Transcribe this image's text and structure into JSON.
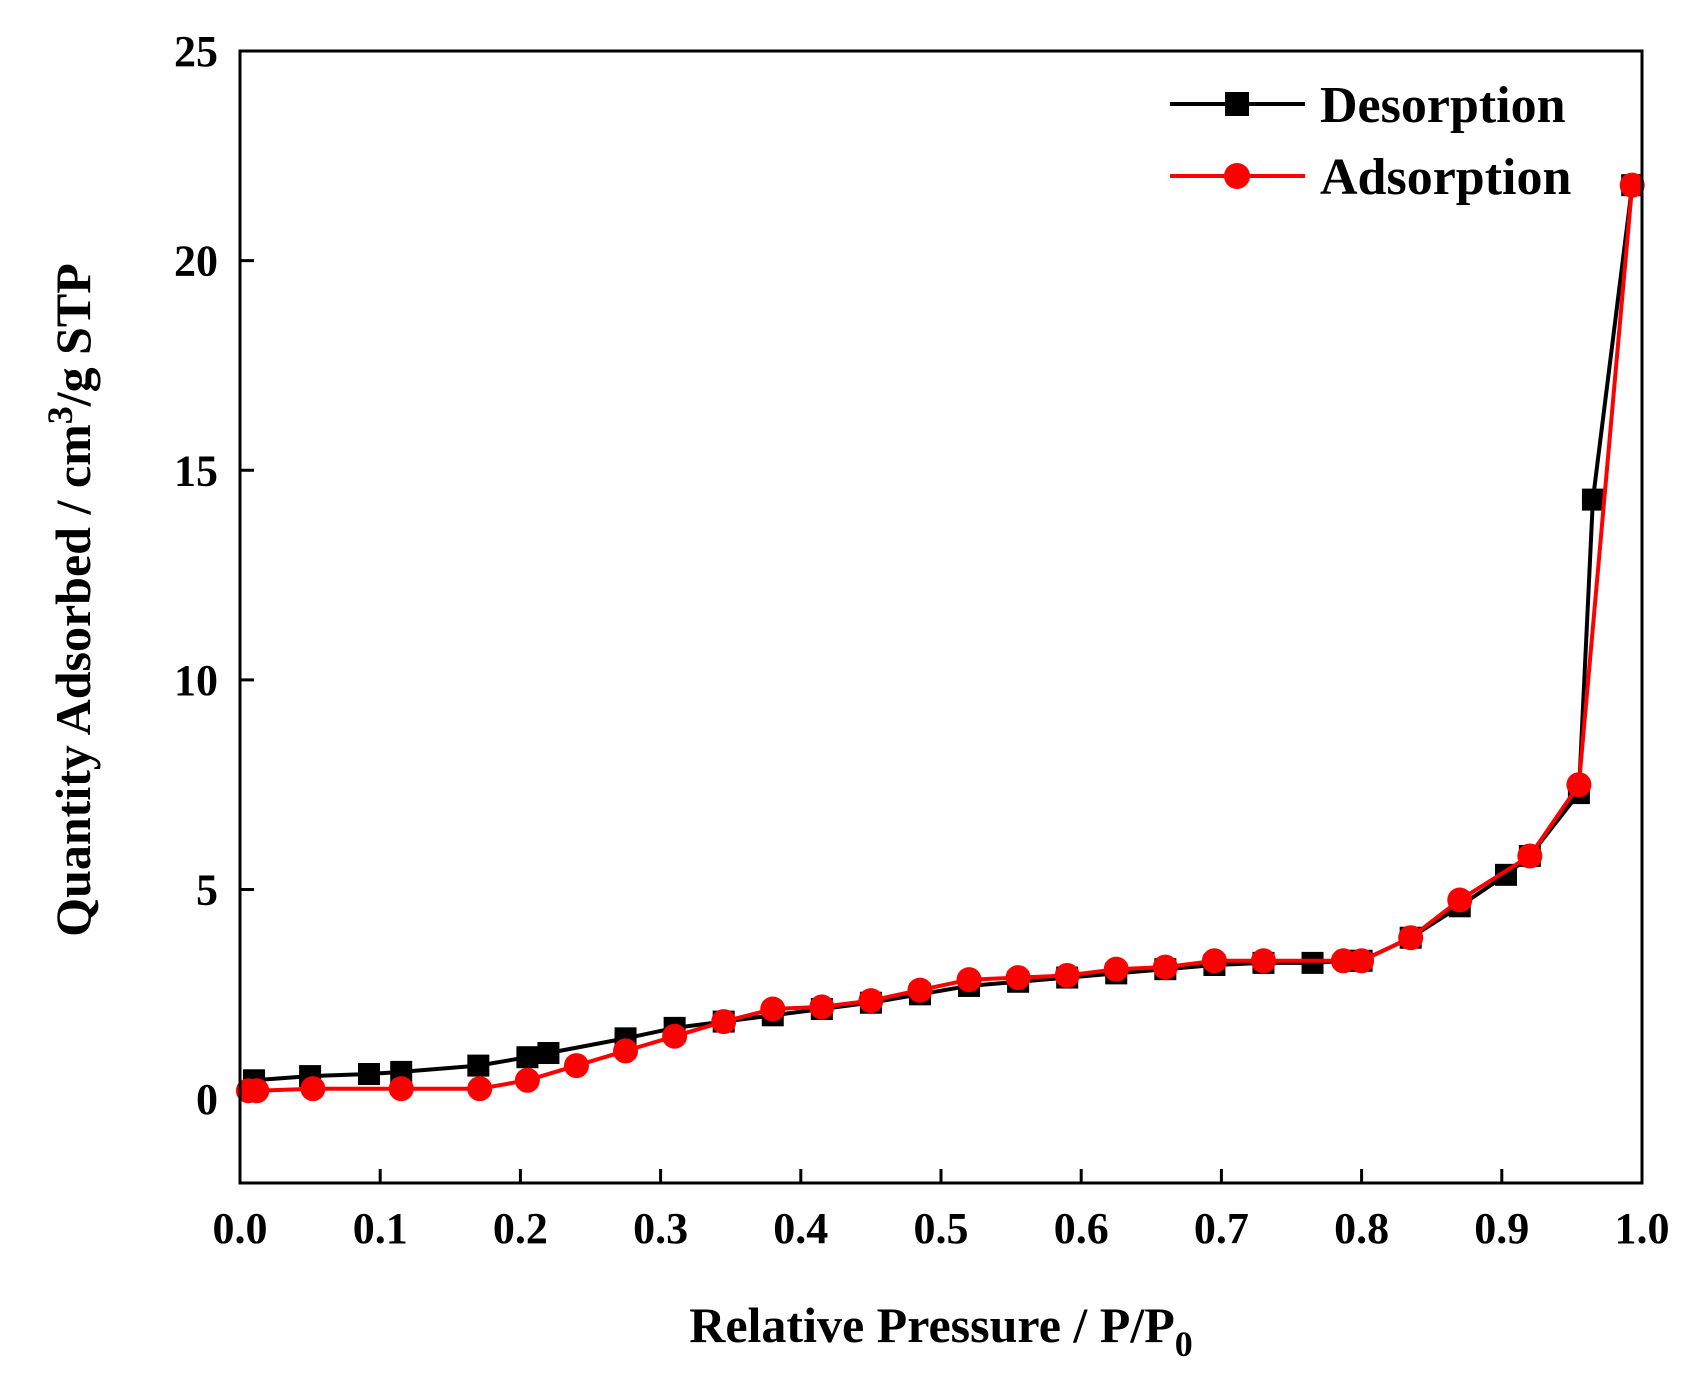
{
  "chart_data": {
    "type": "line",
    "title": "",
    "xlabel": {
      "main": "Relative Pressure / P/P",
      "sub": "0"
    },
    "ylabel": {
      "pre": "Quantity Adsorbed / cm",
      "sup": "3",
      "post": "/g STP"
    },
    "xlim": [
      0.0,
      1.0
    ],
    "ylim": [
      -2,
      25
    ],
    "xticks": [
      {
        "value": 0.0,
        "label": "0.0"
      },
      {
        "value": 0.1,
        "label": "0.1"
      },
      {
        "value": 0.2,
        "label": "0.2"
      },
      {
        "value": 0.3,
        "label": "0.3"
      },
      {
        "value": 0.4,
        "label": "0.4"
      },
      {
        "value": 0.5,
        "label": "0.5"
      },
      {
        "value": 0.6,
        "label": "0.6"
      },
      {
        "value": 0.7,
        "label": "0.7"
      },
      {
        "value": 0.8,
        "label": "0.8"
      },
      {
        "value": 0.9,
        "label": "0.9"
      },
      {
        "value": 1.0,
        "label": "1.0"
      }
    ],
    "yticks": [
      {
        "value": 0,
        "label": "0"
      },
      {
        "value": 5,
        "label": "5"
      },
      {
        "value": 10,
        "label": "10"
      },
      {
        "value": 15,
        "label": "15"
      },
      {
        "value": 20,
        "label": "20"
      },
      {
        "value": 25,
        "label": "25"
      }
    ],
    "legend_position": "top-right",
    "grid": false,
    "series": [
      {
        "name": "Desorption",
        "color": "#000000",
        "marker": "square",
        "x": [
          0.01,
          0.05,
          0.092,
          0.115,
          0.17,
          0.205,
          0.22,
          0.275,
          0.31,
          0.345,
          0.38,
          0.415,
          0.45,
          0.485,
          0.52,
          0.555,
          0.59,
          0.625,
          0.66,
          0.695,
          0.73,
          0.765,
          0.79,
          0.8,
          0.835,
          0.87,
          0.903,
          0.92,
          0.955,
          0.965,
          0.993
        ],
        "y": [
          0.45,
          0.55,
          0.6,
          0.65,
          0.8,
          1.0,
          1.1,
          1.45,
          1.7,
          1.85,
          2.0,
          2.15,
          2.3,
          2.5,
          2.7,
          2.8,
          2.9,
          3.0,
          3.1,
          3.2,
          3.25,
          3.25,
          3.3,
          3.3,
          3.85,
          4.6,
          5.35,
          5.8,
          7.3,
          14.3,
          21.8
        ]
      },
      {
        "name": "Adsorption",
        "color": "#ff0000",
        "marker": "circle",
        "x": [
          0.006,
          0.012,
          0.052,
          0.115,
          0.171,
          0.205,
          0.24,
          0.275,
          0.31,
          0.345,
          0.38,
          0.415,
          0.45,
          0.485,
          0.52,
          0.555,
          0.59,
          0.625,
          0.66,
          0.695,
          0.73,
          0.787,
          0.8,
          0.835,
          0.87,
          0.92,
          0.955,
          0.993
        ],
        "y": [
          0.2,
          0.2,
          0.25,
          0.25,
          0.25,
          0.45,
          0.8,
          1.15,
          1.5,
          1.85,
          2.15,
          2.2,
          2.35,
          2.6,
          2.85,
          2.9,
          2.95,
          3.1,
          3.15,
          3.3,
          3.3,
          3.3,
          3.3,
          3.85,
          4.75,
          5.8,
          7.5,
          21.8
        ]
      }
    ]
  }
}
